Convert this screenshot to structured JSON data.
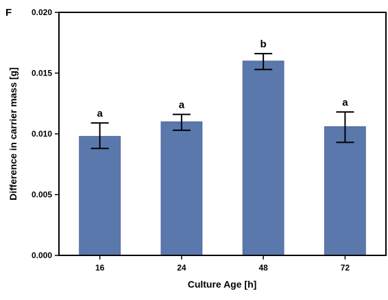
{
  "panel_letter": "F",
  "colors": {
    "bar": "#5b78ad",
    "axis": "#000000",
    "errorbar": "#000000"
  },
  "chart_data": {
    "type": "bar",
    "title": "",
    "xlabel": "Culture Age [h]",
    "ylabel": "Difference in carrier mass [g]",
    "categories": [
      "16",
      "24",
      "48",
      "72"
    ],
    "values": [
      0.0098,
      0.011,
      0.016,
      0.0106
    ],
    "error_upper": [
      0.0109,
      0.0116,
      0.0166,
      0.0118
    ],
    "error_lower": [
      0.0088,
      0.0103,
      0.0153,
      0.0093
    ],
    "significance_labels": [
      "a",
      "a",
      "b",
      "a"
    ],
    "ylim": [
      0.0,
      0.02
    ],
    "yticks": [
      0.0,
      0.005,
      0.01,
      0.015,
      0.02
    ],
    "ytick_labels": [
      "0.000",
      "0.005",
      "0.010",
      "0.015",
      "0.020"
    ],
    "grid": false,
    "legend": "none"
  }
}
